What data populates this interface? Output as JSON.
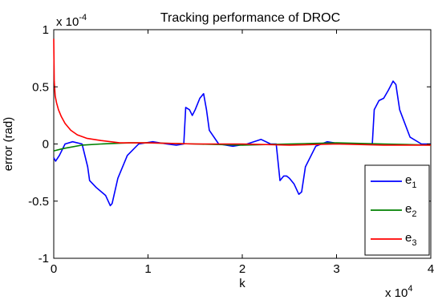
{
  "chart_data": {
    "type": "line",
    "title": "Tracking performance of DROC",
    "xlabel": "k",
    "ylabel": "error (rad)",
    "x_multiplier": {
      "base": "x 10",
      "exp": "4"
    },
    "y_multiplier": {
      "base": "x 10",
      "exp": "-4"
    },
    "xlim": [
      0,
      4
    ],
    "ylim": [
      -1,
      1
    ],
    "x_ticks": [
      "0",
      "1",
      "2",
      "3",
      "4"
    ],
    "y_ticks": [
      "1",
      "0.5",
      "0",
      "-0.5",
      "-1"
    ],
    "x_tick_values": [
      0,
      1,
      2,
      3,
      4
    ],
    "y_tick_values": [
      1,
      0.5,
      0,
      -0.5,
      -1
    ],
    "grid": false,
    "legend_position": "bottom-right",
    "series": [
      {
        "name": "e1",
        "label_base": "e",
        "label_sub": "1",
        "color": "#0000ff",
        "x": [
          0,
          0.02,
          0.06,
          0.12,
          0.2,
          0.3,
          0.36,
          0.38,
          0.45,
          0.55,
          0.6,
          0.62,
          0.68,
          0.78,
          0.9,
          1.05,
          1.2,
          1.3,
          1.38,
          1.4,
          1.44,
          1.47,
          1.5,
          1.55,
          1.59,
          1.62,
          1.65,
          1.75,
          1.9,
          2.05,
          2.2,
          2.3,
          2.36,
          2.4,
          2.44,
          2.47,
          2.5,
          2.55,
          2.6,
          2.63,
          2.67,
          2.78,
          2.9,
          3.05,
          3.2,
          3.3,
          3.38,
          3.4,
          3.45,
          3.5,
          3.55,
          3.6,
          3.63,
          3.67,
          3.78,
          3.9,
          4.0
        ],
        "y": [
          -0.12,
          -0.15,
          -0.1,
          0.0,
          0.02,
          0.0,
          -0.2,
          -0.32,
          -0.38,
          -0.45,
          -0.54,
          -0.52,
          -0.3,
          -0.1,
          0.0,
          0.02,
          0.0,
          -0.01,
          0.0,
          0.32,
          0.3,
          0.25,
          0.3,
          0.4,
          0.44,
          0.3,
          0.12,
          0.0,
          -0.02,
          0.0,
          0.04,
          0.0,
          0.0,
          -0.32,
          -0.28,
          -0.28,
          -0.3,
          -0.35,
          -0.44,
          -0.42,
          -0.2,
          -0.02,
          0.02,
          0.0,
          0.0,
          0.0,
          0.0,
          0.3,
          0.38,
          0.4,
          0.47,
          0.55,
          0.52,
          0.3,
          0.06,
          0.0,
          0.0
        ]
      },
      {
        "name": "e2",
        "label_base": "e",
        "label_sub": "2",
        "color": "#008000",
        "x": [
          0,
          0.1,
          0.3,
          0.5,
          0.8,
          1.0,
          1.5,
          2.0,
          2.5,
          3.0,
          3.5,
          4.0
        ],
        "y": [
          -0.06,
          -0.04,
          -0.01,
          0.0,
          0.01,
          0.01,
          0.0,
          -0.01,
          0.0,
          0.01,
          0.0,
          -0.01
        ]
      },
      {
        "name": "e3",
        "label_base": "e",
        "label_sub": "3",
        "color": "#ff0000",
        "x": [
          0,
          0.005,
          0.015,
          0.03,
          0.05,
          0.08,
          0.12,
          0.18,
          0.25,
          0.35,
          0.5,
          0.7,
          1.0,
          1.5,
          2.0,
          2.5,
          3.0,
          3.5,
          4.0
        ],
        "y": [
          0.92,
          0.55,
          0.42,
          0.36,
          0.3,
          0.24,
          0.18,
          0.12,
          0.08,
          0.05,
          0.03,
          0.01,
          0.01,
          0.0,
          0.0,
          -0.01,
          0.0,
          -0.01,
          -0.01
        ]
      }
    ]
  }
}
